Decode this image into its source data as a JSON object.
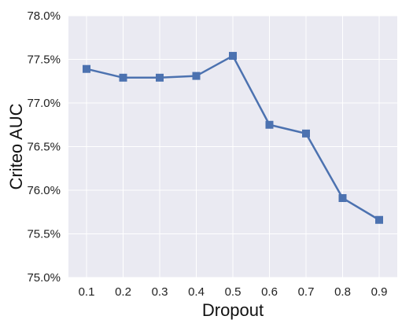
{
  "chart_data": {
    "type": "line",
    "title": "",
    "xlabel": "Dropout",
    "ylabel": "Criteo AUC",
    "x": [
      0.1,
      0.2,
      0.3,
      0.4,
      0.5,
      0.6,
      0.7,
      0.8,
      0.9
    ],
    "x_tick_labels": [
      "0.1",
      "0.2",
      "0.3",
      "0.4",
      "0.5",
      "0.6",
      "0.7",
      "0.8",
      "0.9"
    ],
    "series": [
      {
        "values": [
          77.39,
          77.29,
          77.29,
          77.31,
          77.54,
          76.75,
          76.65,
          75.91,
          75.66
        ]
      }
    ],
    "ylim": [
      75.0,
      78.0
    ],
    "y_ticks": [
      75.0,
      75.5,
      76.0,
      76.5,
      77.0,
      77.5,
      78.0
    ],
    "y_tick_labels": [
      "75.0%",
      "75.5%",
      "76.0%",
      "76.5%",
      "77.0%",
      "77.5%",
      "78.0%"
    ],
    "grid": true,
    "legend": "none",
    "colors": {
      "plot_background": "#EAEAF2",
      "grid": "#FFFFFF",
      "line": "#4C72B0",
      "marker": "#4C72B0"
    },
    "marker_shape": "square"
  }
}
